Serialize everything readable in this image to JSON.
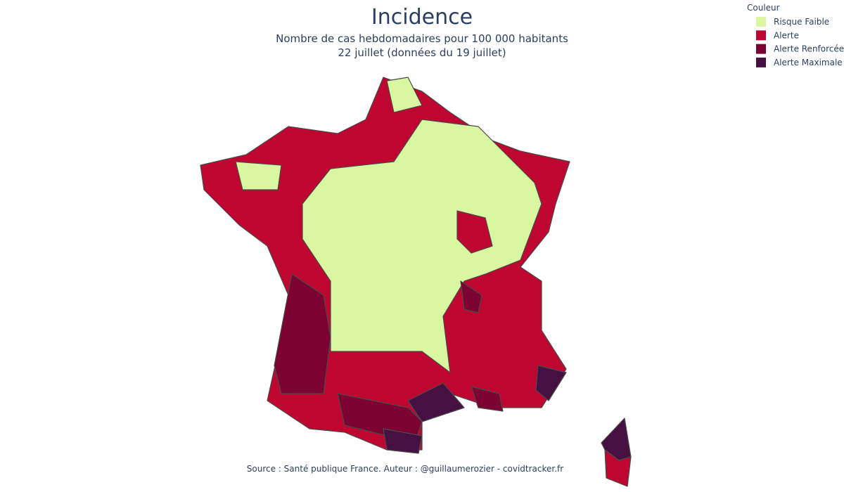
{
  "header": {
    "title": "Incidence",
    "subtitle": [
      "Nombre de cas hebdomadaires pour 100 000 habitants",
      "22 juillet (données du 19 juillet)"
    ]
  },
  "legend": {
    "title": "Couleur",
    "items": [
      {
        "name": "Risque Faible",
        "color": "#d9f7a0"
      },
      {
        "name": "Alerte",
        "color": "#bf0630"
      },
      {
        "name": "Alerte Renforcée",
        "color": "#7c0231"
      },
      {
        "name": "Alerte Maximale",
        "color": "#461042"
      }
    ]
  },
  "footer": {
    "source": "Source : Santé publique France. Auteur : @guillaumerozier - covidtracker.fr"
  }
}
